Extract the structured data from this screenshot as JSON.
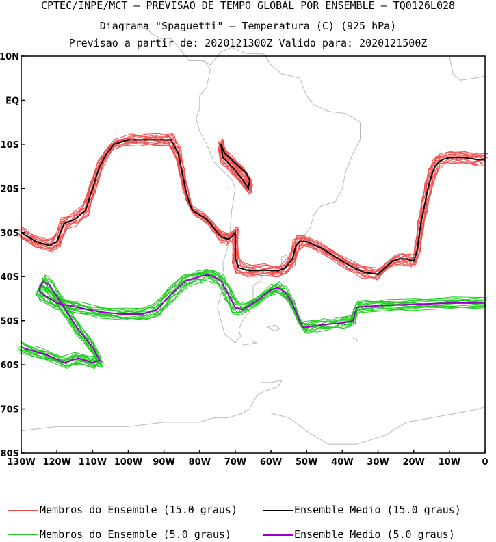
{
  "header": {
    "line1": "CPTEC/INPE/MCT – PREVISAO DE TEMPO GLOBAL POR ENSEMBLE – TQ0126L028",
    "line2": "Diagrama \"Spaguetti\" – Temperatura (C) (925 hPa)",
    "line3": "Previsao a partir de: 2020121300Z  Valido para: 2020121500Z"
  },
  "legend": {
    "items": [
      {
        "label": "Membros do Ensemble (15.0 graus)",
        "color": "#f25050"
      },
      {
        "label": "Ensemble Medio (15.0 graus)",
        "color": "#000000"
      },
      {
        "label": "Membros do Ensemble (5.0 graus)",
        "color": "#22cc22"
      },
      {
        "label": "Ensemble Medio (5.0 graus)",
        "color": "#9900cc"
      }
    ]
  },
  "chart_data": {
    "type": "line",
    "title": "",
    "xlabel": "",
    "ylabel": "",
    "xlim": [
      -130,
      0
    ],
    "ylim": [
      -80,
      10
    ],
    "x_ticks": [
      "130W",
      "120W",
      "110W",
      "100W",
      "90W",
      "80W",
      "70W",
      "60W",
      "50W",
      "40W",
      "30W",
      "20W",
      "10W",
      "0"
    ],
    "y_ticks": [
      "10N",
      "EQ",
      "10S",
      "20S",
      "30S",
      "40S",
      "50S",
      "60S",
      "70S",
      "80S"
    ],
    "series": [
      {
        "name": "Ensemble Medio (15.0 graus)",
        "color": "#000000",
        "lon": [
          -130,
          -126,
          -122,
          -120,
          -118,
          -115,
          -112,
          -110,
          -108,
          -106,
          -104,
          -100,
          -96,
          -92,
          -88,
          -86,
          -85,
          -84,
          -83,
          -82,
          -80,
          -78,
          -76,
          -74,
          -72,
          -71,
          -70,
          -70,
          -69,
          -66,
          -62,
          -58,
          -56,
          -54,
          -53,
          -52,
          -50,
          -46,
          -42,
          -38,
          -34,
          -30,
          -28,
          -26,
          -24,
          -22,
          -20,
          -19,
          -18,
          -17,
          -16,
          -15,
          -14,
          -13,
          -12,
          -10,
          -6,
          -2,
          0
        ],
        "lat": [
          -30,
          -32,
          -33,
          -32,
          -28,
          -27,
          -25,
          -20,
          -15,
          -12,
          -10,
          -9,
          -9,
          -9,
          -9,
          -12,
          -16,
          -20,
          -23,
          -25,
          -26,
          -27,
          -29,
          -31,
          -31.5,
          -31,
          -30,
          -36,
          -38,
          -38.7,
          -38.5,
          -38.7,
          -38,
          -36,
          -33,
          -32,
          -32,
          -33.5,
          -35.5,
          -37.5,
          -39,
          -39.5,
          -38,
          -36.5,
          -36,
          -36,
          -36.5,
          -34,
          -28,
          -24,
          -20,
          -17,
          -15,
          -14,
          -13.5,
          -13,
          -13,
          -13.5,
          -13.5
        ]
      },
      {
        "name": "Ensemble Medio (15.0 graus)",
        "color": "#000000",
        "lon": [
          -74,
          -73,
          -71,
          -69,
          -67,
          -66,
          -66.3,
          -68,
          -71,
          -73.5,
          -74
        ],
        "lat": [
          -10,
          -12,
          -13.5,
          -15,
          -16.5,
          -18,
          -20,
          -18,
          -15,
          -13,
          -10
        ]
      },
      {
        "name": "Ensemble Medio (5.0 graus)",
        "color": "#9900cc",
        "lon": [
          -130,
          -126,
          -122,
          -118,
          -114,
          -110,
          -108,
          -110,
          -114,
          -118,
          -122,
          -124,
          -125,
          -124,
          -120,
          -114,
          -108,
          -102,
          -96,
          -92,
          -88,
          -84,
          -80,
          -78,
          -76,
          -74,
          -72,
          -70,
          -68,
          -64,
          -60,
          -58,
          -56,
          -54,
          -52,
          -51,
          -50,
          -48,
          -44,
          -40,
          -37,
          -36,
          -34,
          -28,
          -20,
          -10,
          0
        ],
        "lat": [
          -56,
          -57,
          -58,
          -59.5,
          -58.5,
          -59.5,
          -59,
          -56,
          -52,
          -47,
          -42,
          -41,
          -43,
          -44,
          -46,
          -47,
          -48,
          -48.5,
          -48.5,
          -47.5,
          -44,
          -41,
          -40,
          -39.6,
          -40,
          -41,
          -44,
          -47,
          -47.5,
          -45.5,
          -43,
          -42.5,
          -43.5,
          -46,
          -50,
          -51.5,
          -51.5,
          -51.2,
          -50.8,
          -50.5,
          -50,
          -47,
          -46.8,
          -46.5,
          -46.3,
          -46,
          -46
        ]
      }
    ],
    "members_15": {
      "color": "#f25050",
      "count": 15,
      "note": "Membros do Ensemble (15.0 graus) spread around the 15.0 graus ensemble mean"
    },
    "members_5": {
      "color": "#22cc22",
      "count": 15,
      "note": "Membros do Ensemble (5.0 graus) spread around the 5.0 graus ensemble mean"
    }
  }
}
